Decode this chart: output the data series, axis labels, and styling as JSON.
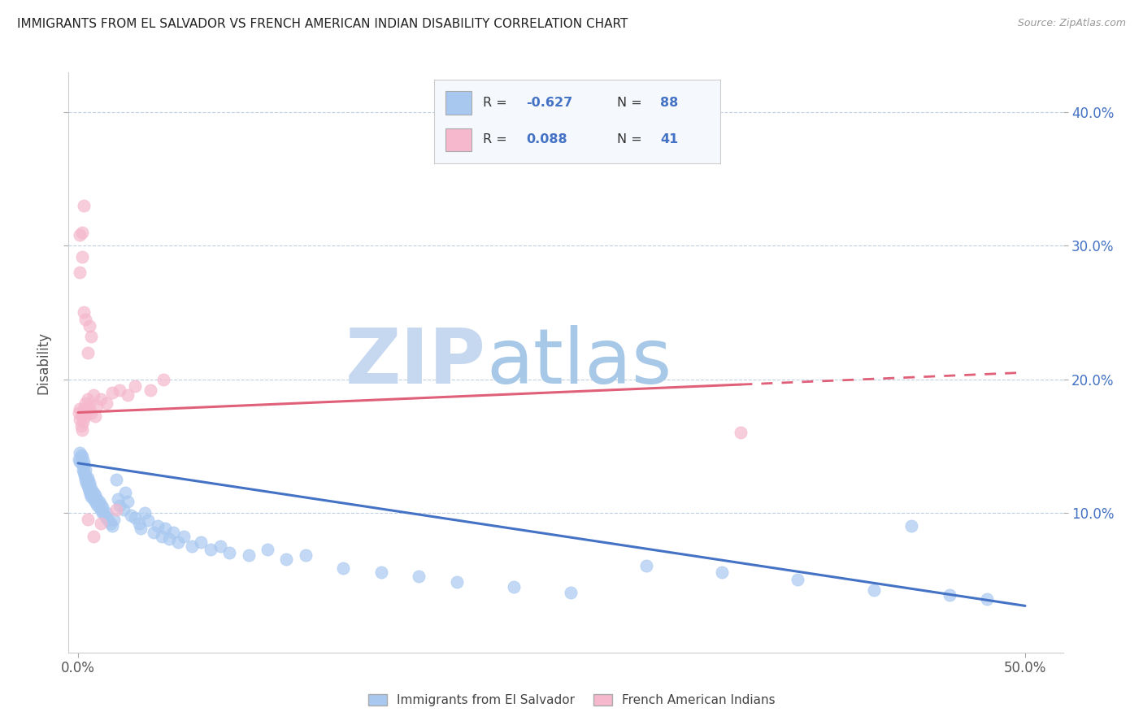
{
  "title": "IMMIGRANTS FROM EL SALVADOR VS FRENCH AMERICAN INDIAN DISABILITY CORRELATION CHART",
  "source": "Source: ZipAtlas.com",
  "ylabel": "Disability",
  "xlim": [
    -0.005,
    0.52
  ],
  "ylim": [
    -0.005,
    0.43
  ],
  "blue_R": -0.627,
  "blue_N": 88,
  "pink_R": 0.088,
  "pink_N": 41,
  "blue_color": "#a8c8f0",
  "pink_color": "#f5b8cc",
  "blue_line_color": "#4472c4",
  "pink_line_color": "#e0607a",
  "watermark_zip": "ZIP",
  "watermark_atlas": "atlas",
  "watermark_color": "#dce8f5",
  "grid_color": "#c0cfe0",
  "background_color": "#ffffff",
  "legend_bg": "#f5f8fc",
  "blue_trend_x0": 0.0,
  "blue_trend_y0": 0.137,
  "blue_trend_x1": 0.5,
  "blue_trend_y1": 0.03,
  "pink_trend_x0": 0.0,
  "pink_trend_y0": 0.175,
  "pink_trend_x1": 0.5,
  "pink_trend_y1": 0.205,
  "blue_scatter_x": [
    0.0005,
    0.001,
    0.001,
    0.0015,
    0.002,
    0.002,
    0.0025,
    0.003,
    0.003,
    0.003,
    0.0035,
    0.004,
    0.004,
    0.004,
    0.0045,
    0.005,
    0.005,
    0.005,
    0.0055,
    0.006,
    0.006,
    0.006,
    0.0065,
    0.007,
    0.007,
    0.007,
    0.008,
    0.008,
    0.008,
    0.009,
    0.009,
    0.01,
    0.01,
    0.011,
    0.011,
    0.012,
    0.012,
    0.013,
    0.013,
    0.014,
    0.015,
    0.015,
    0.016,
    0.017,
    0.018,
    0.019,
    0.02,
    0.021,
    0.022,
    0.024,
    0.025,
    0.026,
    0.028,
    0.03,
    0.032,
    0.033,
    0.035,
    0.037,
    0.04,
    0.042,
    0.044,
    0.046,
    0.048,
    0.05,
    0.053,
    0.056,
    0.06,
    0.065,
    0.07,
    0.075,
    0.08,
    0.09,
    0.1,
    0.11,
    0.12,
    0.14,
    0.16,
    0.18,
    0.2,
    0.23,
    0.26,
    0.3,
    0.34,
    0.38,
    0.42,
    0.46,
    0.44,
    0.48
  ],
  "blue_scatter_y": [
    0.14,
    0.145,
    0.138,
    0.143,
    0.136,
    0.142,
    0.132,
    0.13,
    0.138,
    0.135,
    0.128,
    0.125,
    0.132,
    0.128,
    0.122,
    0.12,
    0.126,
    0.124,
    0.118,
    0.116,
    0.122,
    0.12,
    0.114,
    0.112,
    0.118,
    0.116,
    0.11,
    0.115,
    0.112,
    0.108,
    0.113,
    0.106,
    0.11,
    0.104,
    0.108,
    0.102,
    0.106,
    0.1,
    0.104,
    0.098,
    0.096,
    0.1,
    0.094,
    0.092,
    0.09,
    0.095,
    0.125,
    0.11,
    0.105,
    0.102,
    0.115,
    0.108,
    0.098,
    0.096,
    0.092,
    0.088,
    0.1,
    0.094,
    0.085,
    0.09,
    0.082,
    0.088,
    0.08,
    0.085,
    0.078,
    0.082,
    0.075,
    0.078,
    0.072,
    0.075,
    0.07,
    0.068,
    0.072,
    0.065,
    0.068,
    0.058,
    0.055,
    0.052,
    0.048,
    0.044,
    0.04,
    0.06,
    0.055,
    0.05,
    0.042,
    0.038,
    0.09,
    0.035
  ],
  "pink_scatter_x": [
    0.0005,
    0.001,
    0.001,
    0.0015,
    0.002,
    0.002,
    0.0025,
    0.003,
    0.003,
    0.004,
    0.004,
    0.005,
    0.005,
    0.006,
    0.007,
    0.008,
    0.009,
    0.01,
    0.012,
    0.015,
    0.018,
    0.022,
    0.026,
    0.03,
    0.038,
    0.045,
    0.001,
    0.002,
    0.003,
    0.004,
    0.005,
    0.006,
    0.007,
    0.001,
    0.002,
    0.003,
    0.35,
    0.005,
    0.008,
    0.012,
    0.02
  ],
  "pink_scatter_y": [
    0.175,
    0.17,
    0.178,
    0.165,
    0.162,
    0.172,
    0.168,
    0.175,
    0.178,
    0.182,
    0.172,
    0.178,
    0.185,
    0.18,
    0.175,
    0.188,
    0.172,
    0.18,
    0.185,
    0.182,
    0.19,
    0.192,
    0.188,
    0.195,
    0.192,
    0.2,
    0.28,
    0.292,
    0.25,
    0.245,
    0.22,
    0.24,
    0.232,
    0.308,
    0.31,
    0.33,
    0.16,
    0.095,
    0.082,
    0.092,
    0.102
  ],
  "xtick_positions": [
    0.0,
    0.5
  ],
  "xtick_labels": [
    "0.0%",
    "50.0%"
  ],
  "ytick_positions": [
    0.1,
    0.2,
    0.3,
    0.4
  ],
  "ytick_labels": [
    "10.0%",
    "20.0%",
    "30.0%",
    "40.0%"
  ]
}
